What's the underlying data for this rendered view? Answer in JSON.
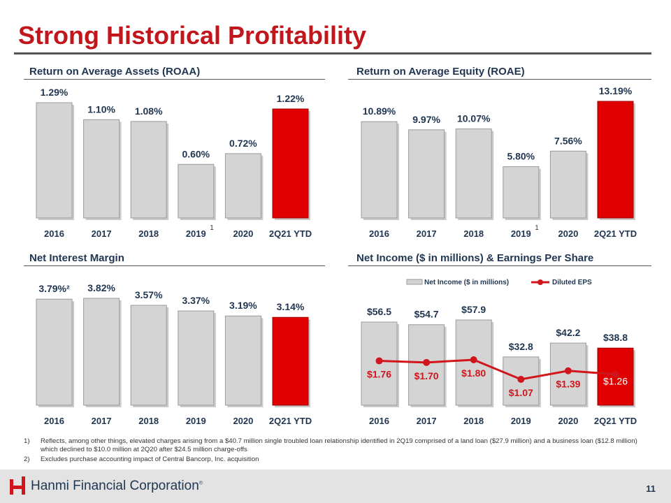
{
  "title": "Strong Historical Profitability",
  "panels": {
    "roaa": {
      "title": "Return on Average Assets (ROAA)"
    },
    "roae": {
      "title": "Return on Average Equity (ROAE)"
    },
    "nim": {
      "title": "Net Interest Margin"
    },
    "ni": {
      "title": "Net Income ($ in millions) & Earnings Per Share"
    }
  },
  "colors": {
    "bar_gray": "#d4d4d4",
    "bar_red": "#e00000",
    "eps_line": "#d0161c",
    "text_navy": "#1f3550"
  },
  "footnotes": [
    {
      "num": "1)",
      "text": "Reflects, among other things, elevated charges arising from a $40.7 million single troubled loan relationship identified in 2Q19 comprised of a land loan ($27.9 million) and a business loan ($12.8 million) which declined to $10.0 million at 2Q20 after $24.5 million charge-offs"
    },
    {
      "num": "2)",
      "text": "Excludes purchase accounting impact of Central Bancorp, Inc. acquisition"
    }
  ],
  "footer": {
    "company": "Hanmi Financial Corporation",
    "tm": "®",
    "page": "11"
  },
  "chart_data": [
    {
      "id": "roaa",
      "type": "bar",
      "title": "Return on Average Assets (ROAA)",
      "categories": [
        "2016",
        "2017",
        "2018",
        "2019",
        "2020",
        "2Q21 YTD"
      ],
      "values": [
        1.29,
        1.1,
        1.08,
        0.6,
        0.72,
        1.22
      ],
      "labels": [
        "1.29%",
        "1.10%",
        "1.08%",
        "0.60%",
        "0.72%",
        "1.22%"
      ],
      "superscripts": [
        "",
        "",
        "",
        "1",
        "",
        ""
      ],
      "highlight": [
        5
      ],
      "ylim": [
        0,
        1.29
      ]
    },
    {
      "id": "roae",
      "type": "bar",
      "title": "Return on Average Equity (ROAE)",
      "categories": [
        "2016",
        "2017",
        "2018",
        "2019",
        "2020",
        "2Q21 YTD"
      ],
      "values": [
        10.89,
        9.97,
        10.07,
        5.8,
        7.56,
        13.19
      ],
      "labels": [
        "10.89%",
        "9.97%",
        "10.07%",
        "5.80%",
        "7.56%",
        "13.19%"
      ],
      "superscripts": [
        "",
        "",
        "",
        "1",
        "",
        ""
      ],
      "highlight": [
        5
      ],
      "ylim": [
        0,
        13.19
      ]
    },
    {
      "id": "nim",
      "type": "bar",
      "title": "Net Interest Margin",
      "categories": [
        "2016",
        "2017",
        "2018",
        "2019",
        "2020",
        "2Q21 YTD"
      ],
      "values": [
        3.79,
        3.82,
        3.57,
        3.37,
        3.19,
        3.14
      ],
      "labels": [
        "3.79%²",
        "3.82%",
        "3.57%",
        "3.37%",
        "3.19%",
        "3.14%"
      ],
      "superscripts": [
        "",
        "",
        "",
        "",
        "",
        ""
      ],
      "highlight": [
        5
      ],
      "ylim": [
        0,
        3.82
      ]
    },
    {
      "id": "ni",
      "type": "bar",
      "title": "Net Income ($ in millions) & Earnings Per Share",
      "categories": [
        "2016",
        "2017",
        "2018",
        "2019",
        "2020",
        "2Q21 YTD"
      ],
      "values": [
        56.5,
        54.7,
        57.9,
        32.8,
        42.2,
        38.8
      ],
      "labels": [
        "$56.5",
        "$54.7",
        "$57.9",
        "$32.8",
        "$42.2",
        "$38.8"
      ],
      "highlight": [
        5
      ],
      "ylim": [
        0,
        57.9
      ],
      "legend": [
        "Net Income ($ in millions)",
        "Diluted EPS"
      ],
      "series": [
        {
          "name": "Diluted EPS",
          "type": "line",
          "values": [
            1.76,
            1.7,
            1.8,
            1.07,
            1.39,
            1.26
          ],
          "labels": [
            "$1.76",
            "$1.70",
            "$1.80",
            "$1.07",
            "$1.39",
            "$1.26"
          ]
        }
      ]
    }
  ]
}
